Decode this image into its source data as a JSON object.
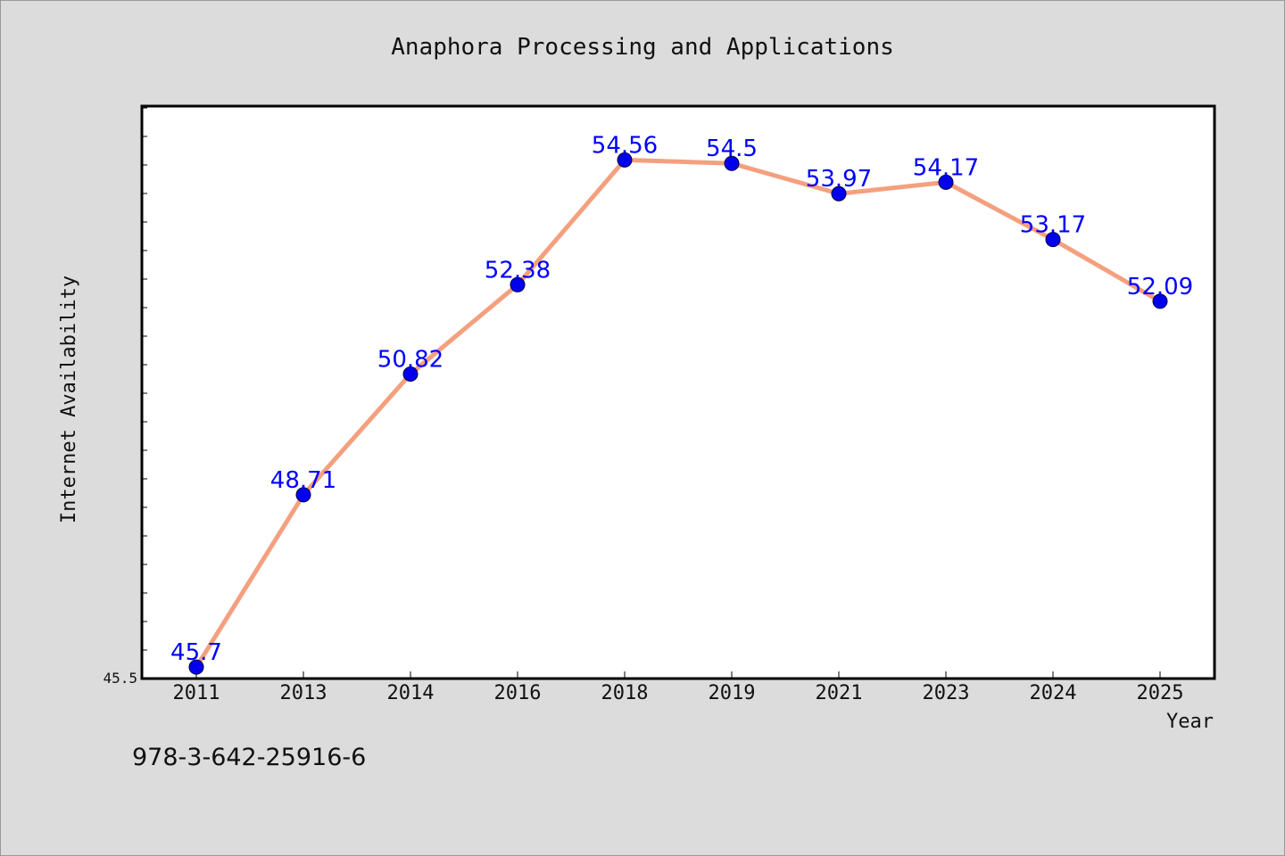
{
  "chart_data": {
    "type": "line",
    "title": "Anaphora Processing and Applications",
    "xlabel": "Year",
    "ylabel": "Internet Availability",
    "categories": [
      "2011",
      "2013",
      "2014",
      "2016",
      "2018",
      "2019",
      "2021",
      "2023",
      "2024",
      "2025"
    ],
    "series": [
      {
        "values": [
          45.7,
          48.71,
          50.82,
          52.38,
          54.56,
          54.5,
          53.97,
          54.17,
          53.17,
          52.09
        ]
      }
    ],
    "value_labels": [
      "45.7",
      "48.71",
      "50.82",
      "52.38",
      "54.56",
      "54.5",
      "53.97",
      "54.17",
      "53.17",
      "52.09"
    ],
    "ylim": [
      45.5,
      55.5
    ],
    "ytick_labels": [
      "45.5"
    ],
    "grid": false,
    "colors": {
      "line": "#f4a07f",
      "marker": "#0000ee",
      "label": "#0000ff"
    }
  },
  "footer": {
    "isbn": "978-3-642-25916-6"
  }
}
